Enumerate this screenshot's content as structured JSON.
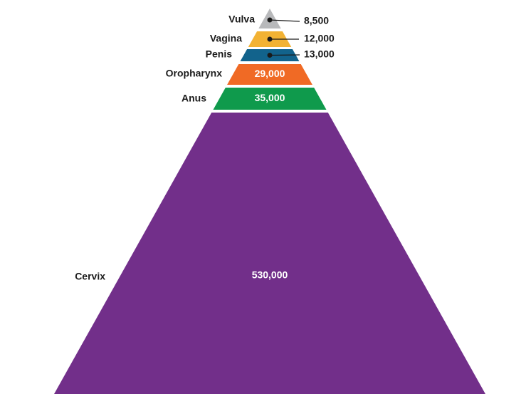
{
  "chart_data": {
    "type": "pyramid",
    "title": "",
    "segments": [
      {
        "name": "Vulva",
        "value": 8500,
        "label": "8,500",
        "color": "#b8b9bb",
        "value_position": "outside"
      },
      {
        "name": "Vagina",
        "value": 12000,
        "label": "12,000",
        "color": "#f2b233",
        "value_position": "outside"
      },
      {
        "name": "Penis",
        "value": 13000,
        "label": "13,000",
        "color": "#12638c",
        "value_position": "outside"
      },
      {
        "name": "Oropharynx",
        "value": 29000,
        "label": "29,000",
        "color": "#f06a25",
        "value_position": "inside"
      },
      {
        "name": "Anus",
        "value": 35000,
        "label": "35,000",
        "color": "#0f9a4c",
        "value_position": "inside"
      },
      {
        "name": "Cervix",
        "value": 530000,
        "label": "530,000",
        "color": "#722f8a",
        "value_position": "inside"
      }
    ]
  }
}
